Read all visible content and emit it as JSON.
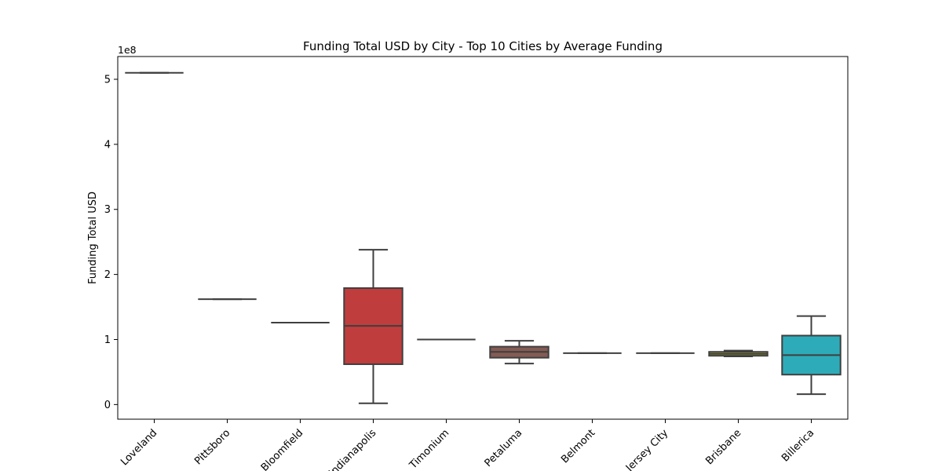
{
  "chart_data": {
    "type": "box",
    "title": "Funding Total USD by City - Top 10 Cities by Average Funding",
    "xlabel": "",
    "ylabel": "Funding Total USD",
    "y_offset_text": "1e8",
    "ylim": [
      -22500000,
      535000000
    ],
    "yticks": [
      0,
      100000000,
      200000000,
      300000000,
      400000000,
      500000000
    ],
    "ytick_labels": [
      "0",
      "1",
      "2",
      "3",
      "4",
      "5"
    ],
    "grid": false,
    "legend": "none",
    "categories": [
      "Loveland",
      "Pittsboro",
      "Bloomfield",
      "Indianapolis",
      "Timonium",
      "Petaluma",
      "Belmont",
      "Jersey City",
      "Brisbane",
      "Billerica"
    ],
    "boxes": [
      {
        "category": "Loveland",
        "whisker_low": 510000000,
        "q1": 510000000,
        "median": 510000000,
        "q3": 510000000,
        "whisker_high": 510000000,
        "color": "#3a75af"
      },
      {
        "category": "Pittsboro",
        "whisker_low": 162000000,
        "q1": 162000000,
        "median": 162000000,
        "q3": 162000000,
        "whisker_high": 162000000,
        "color": "#e1812c"
      },
      {
        "category": "Bloomfield",
        "whisker_low": 126000000,
        "q1": 126000000,
        "median": 126000000,
        "q3": 126000000,
        "whisker_high": 126000000,
        "color": "#3a923a"
      },
      {
        "category": "Indianapolis",
        "whisker_low": 2000000,
        "q1": 62000000,
        "median": 121000000,
        "q3": 179000000,
        "whisker_high": 238000000,
        "color": "#c03d3e"
      },
      {
        "category": "Timonium",
        "whisker_low": 100000000,
        "q1": 100000000,
        "median": 100000000,
        "q3": 100000000,
        "whisker_high": 100000000,
        "color": "#9372b2"
      },
      {
        "category": "Petaluma",
        "whisker_low": 63000000,
        "q1": 72000000,
        "median": 81000000,
        "q3": 89000000,
        "whisker_high": 98000000,
        "color": "#845b53"
      },
      {
        "category": "Belmont",
        "whisker_low": 79000000,
        "q1": 79000000,
        "median": 79000000,
        "q3": 79000000,
        "whisker_high": 79000000,
        "color": "#d684bd"
      },
      {
        "category": "Jersey City",
        "whisker_low": 79000000,
        "q1": 79000000,
        "median": 79000000,
        "q3": 79000000,
        "whisker_high": 79000000,
        "color": "#7f7f7f"
      },
      {
        "category": "Brisbane",
        "whisker_low": 74000000,
        "q1": 75000000,
        "median": 78000000,
        "q3": 81000000,
        "whisker_high": 83000000,
        "color": "#a9aa35"
      },
      {
        "category": "Billerica",
        "whisker_low": 16000000,
        "q1": 46000000,
        "median": 76000000,
        "q3": 106000000,
        "whisker_high": 136000000,
        "color": "#2eabb8"
      }
    ]
  }
}
